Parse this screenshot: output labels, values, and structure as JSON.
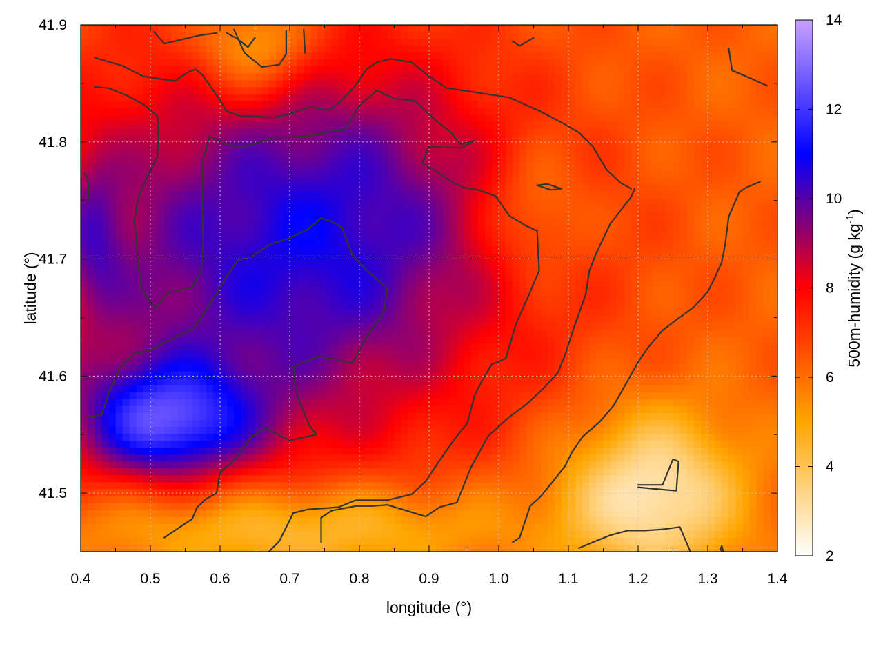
{
  "chart_data": {
    "type": "heatmap",
    "xlabel": "longitude (°)",
    "ylabel": "latitude (°)",
    "colorbar_label": "500m-humidity (g kg",
    "colorbar_label_sup": "-1",
    "colorbar_label_close": ")",
    "xlim": [
      0.4,
      1.4
    ],
    "ylim": [
      41.45,
      41.9
    ],
    "zlim": [
      2,
      14
    ],
    "x_ticks": [
      0.4,
      0.5,
      0.6,
      0.7,
      0.8,
      0.9,
      1.0,
      1.1,
      1.2,
      1.3,
      1.4
    ],
    "x_tick_labels": [
      "0.4",
      "0.5",
      "0.6",
      "0.7",
      "0.8",
      "0.9",
      "1.0",
      "1.1",
      "1.2",
      "1.3",
      "1.4"
    ],
    "y_ticks": [
      41.5,
      41.6,
      41.7,
      41.8,
      41.9
    ],
    "y_tick_labels": [
      "41.5",
      "41.6",
      "41.7",
      "41.8",
      "41.9"
    ],
    "colorbar_ticks": [
      2,
      4,
      6,
      8,
      10,
      12,
      14
    ],
    "colorbar_tick_labels": [
      "2",
      "4",
      "6",
      "8",
      "10",
      "12",
      "14"
    ],
    "grid": true,
    "colorscale": [
      "#ffffff",
      "#ffa500",
      "#ff0000",
      "#0000ff",
      "#c8a0ff"
    ],
    "field_blobs": [
      {
        "x": 0.67,
        "y": 41.7,
        "sx": 0.26,
        "sy": 0.13,
        "a": 4.0
      },
      {
        "x": 0.82,
        "y": 41.76,
        "sx": 0.14,
        "sy": 0.09,
        "a": 1.0
      },
      {
        "x": 0.52,
        "y": 41.56,
        "sx": 0.09,
        "sy": 0.035,
        "a": 4.5
      },
      {
        "x": 0.42,
        "y": 41.72,
        "sx": 0.03,
        "sy": 0.05,
        "a": 1.5
      },
      {
        "x": 1.22,
        "y": 41.5,
        "sx": 0.09,
        "sy": 0.05,
        "a": -3.5
      },
      {
        "x": 0.7,
        "y": 41.47,
        "sx": 0.22,
        "sy": 0.03,
        "a": -2.5
      },
      {
        "x": 1.05,
        "y": 41.74,
        "sx": 0.05,
        "sy": 0.04,
        "a": -1.5
      },
      {
        "x": 0.65,
        "y": 41.88,
        "sx": 0.06,
        "sy": 0.03,
        "a": -2.5
      }
    ],
    "contours": [
      [
        [
          0.42,
          41.872
        ],
        [
          0.46,
          41.865
        ],
        [
          0.49,
          41.856
        ],
        [
          0.535,
          41.852
        ],
        [
          0.555,
          41.86
        ],
        [
          0.565,
          41.862
        ],
        [
          0.575,
          41.857
        ],
        [
          0.595,
          41.84
        ],
        [
          0.61,
          41.826
        ],
        [
          0.63,
          41.822
        ],
        [
          0.68,
          41.821
        ],
        [
          0.7,
          41.824
        ],
        [
          0.73,
          41.83
        ],
        [
          0.755,
          41.827
        ],
        [
          0.77,
          41.833
        ],
        [
          0.79,
          41.845
        ],
        [
          0.8,
          41.853
        ],
        [
          0.81,
          41.862
        ],
        [
          0.825,
          41.868
        ],
        [
          0.845,
          41.871
        ],
        [
          0.875,
          41.868
        ],
        [
          0.9,
          41.856
        ],
        [
          0.925,
          41.846
        ],
        [
          0.96,
          41.843
        ],
        [
          1.015,
          41.838
        ],
        [
          1.06,
          41.826
        ],
        [
          1.095,
          41.815
        ],
        [
          1.115,
          41.808
        ],
        [
          1.135,
          41.796
        ],
        [
          1.155,
          41.776
        ],
        [
          1.175,
          41.765
        ],
        [
          1.19,
          41.76
        ]
      ],
      [
        [
          0.42,
          41.847
        ],
        [
          0.44,
          41.846
        ],
        [
          0.465,
          41.84
        ],
        [
          0.49,
          41.832
        ],
        [
          0.51,
          41.822
        ],
        [
          0.512,
          41.81
        ],
        [
          0.51,
          41.787
        ],
        [
          0.495,
          41.77
        ],
        [
          0.483,
          41.753
        ],
        [
          0.477,
          41.733
        ],
        [
          0.48,
          41.715
        ],
        [
          0.482,
          41.697
        ],
        [
          0.487,
          41.677
        ],
        [
          0.495,
          41.667
        ],
        [
          0.507,
          41.658
        ],
        [
          0.525,
          41.671
        ],
        [
          0.56,
          41.676
        ],
        [
          0.573,
          41.691
        ],
        [
          0.576,
          41.715
        ],
        [
          0.574,
          41.75
        ],
        [
          0.576,
          41.786
        ],
        [
          0.585,
          41.805
        ],
        [
          0.605,
          41.799
        ],
        [
          0.63,
          41.795
        ],
        [
          0.68,
          41.804
        ],
        [
          0.705,
          41.804
        ],
        [
          0.735,
          41.806
        ],
        [
          0.78,
          41.811
        ],
        [
          0.8,
          41.831
        ],
        [
          0.825,
          41.844
        ],
        [
          0.85,
          41.837
        ],
        [
          0.88,
          41.835
        ],
        [
          0.91,
          41.818
        ],
        [
          0.93,
          41.809
        ],
        [
          0.945,
          41.798
        ],
        [
          0.965,
          41.801
        ],
        [
          0.947,
          41.795
        ],
        [
          0.9,
          41.796
        ],
        [
          0.89,
          41.782
        ],
        [
          0.91,
          41.775
        ],
        [
          0.935,
          41.765
        ],
        [
          0.95,
          41.761
        ],
        [
          0.97,
          41.759
        ],
        [
          0.995,
          41.754
        ],
        [
          1.015,
          41.737
        ],
        [
          1.04,
          41.728
        ],
        [
          1.055,
          41.724
        ],
        [
          1.058,
          41.69
        ],
        [
          1.04,
          41.665
        ],
        [
          1.025,
          41.645
        ],
        [
          1.015,
          41.625
        ],
        [
          1.01,
          41.615
        ],
        [
          0.99,
          41.61
        ],
        [
          0.975,
          41.595
        ],
        [
          0.965,
          41.583
        ],
        [
          0.955,
          41.56
        ],
        [
          0.935,
          41.545
        ],
        [
          0.915,
          41.528
        ],
        [
          0.895,
          41.51
        ],
        [
          0.875,
          41.499
        ],
        [
          0.84,
          41.494
        ],
        [
          0.795,
          41.494
        ],
        [
          0.77,
          41.488
        ],
        [
          0.725,
          41.486
        ],
        [
          0.705,
          41.483
        ],
        [
          0.685,
          41.459
        ],
        [
          0.665,
          41.447
        ]
      ],
      [
        [
          0.41,
          41.565
        ],
        [
          0.43,
          41.567
        ],
        [
          0.44,
          41.585
        ],
        [
          0.455,
          41.606
        ],
        [
          0.475,
          41.619
        ],
        [
          0.5,
          41.622
        ],
        [
          0.52,
          41.629
        ],
        [
          0.56,
          41.64
        ],
        [
          0.575,
          41.652
        ],
        [
          0.6,
          41.676
        ],
        [
          0.625,
          41.699
        ],
        [
          0.645,
          41.702
        ],
        [
          0.67,
          41.712
        ],
        [
          0.7,
          41.718
        ],
        [
          0.725,
          41.725
        ],
        [
          0.745,
          41.735
        ],
        [
          0.76,
          41.732
        ],
        [
          0.775,
          41.727
        ],
        [
          0.79,
          41.703
        ],
        [
          0.815,
          41.688
        ],
        [
          0.84,
          41.675
        ],
        [
          0.835,
          41.655
        ],
        [
          0.81,
          41.633
        ],
        [
          0.79,
          41.611
        ],
        [
          0.76,
          41.615
        ],
        [
          0.74,
          41.617
        ],
        [
          0.72,
          41.612
        ],
        [
          0.705,
          41.608
        ],
        [
          0.708,
          41.591
        ],
        [
          0.715,
          41.577
        ],
        [
          0.728,
          41.558
        ],
        [
          0.738,
          41.55
        ],
        [
          0.715,
          41.547
        ],
        [
          0.7,
          41.545
        ],
        [
          0.68,
          41.551
        ],
        [
          0.665,
          41.556
        ],
        [
          0.645,
          41.548
        ],
        [
          0.63,
          41.535
        ],
        [
          0.615,
          41.525
        ],
        [
          0.6,
          41.518
        ],
        [
          0.595,
          41.5
        ],
        [
          0.58,
          41.495
        ],
        [
          0.567,
          41.488
        ],
        [
          0.56,
          41.478
        ],
        [
          0.54,
          41.47
        ],
        [
          0.52,
          41.462
        ]
      ],
      [
        [
          0.745,
          41.458
        ],
        [
          0.745,
          41.479
        ],
        [
          0.76,
          41.485
        ],
        [
          0.795,
          41.489
        ],
        [
          0.82,
          41.489
        ],
        [
          0.84,
          41.49
        ],
        [
          0.895,
          41.48
        ],
        [
          0.915,
          41.488
        ],
        [
          0.94,
          41.492
        ],
        [
          0.96,
          41.522
        ],
        [
          0.985,
          41.549
        ],
        [
          1.015,
          41.565
        ],
        [
          1.04,
          41.576
        ],
        [
          1.065,
          41.59
        ],
        [
          1.085,
          41.603
        ],
        [
          1.095,
          41.618
        ],
        [
          1.11,
          41.645
        ],
        [
          1.125,
          41.67
        ],
        [
          1.13,
          41.69
        ],
        [
          1.14,
          41.705
        ],
        [
          1.16,
          41.73
        ],
        [
          1.19,
          41.753
        ],
        [
          1.195,
          41.76
        ]
      ],
      [
        [
          1.02,
          41.458
        ],
        [
          1.03,
          41.462
        ],
        [
          1.045,
          41.489
        ],
        [
          1.06,
          41.497
        ],
        [
          1.075,
          41.508
        ],
        [
          1.095,
          41.523
        ],
        [
          1.105,
          41.535
        ],
        [
          1.12,
          41.548
        ],
        [
          1.145,
          41.561
        ],
        [
          1.165,
          41.575
        ],
        [
          1.185,
          41.596
        ],
        [
          1.2,
          41.612
        ],
        [
          1.215,
          41.625
        ],
        [
          1.235,
          41.639
        ],
        [
          1.255,
          41.648
        ],
        [
          1.28,
          41.659
        ],
        [
          1.3,
          41.672
        ],
        [
          1.31,
          41.684
        ],
        [
          1.32,
          41.697
        ],
        [
          1.325,
          41.713
        ],
        [
          1.33,
          41.736
        ],
        [
          1.345,
          41.757
        ],
        [
          1.355,
          41.761
        ],
        [
          1.375,
          41.766
        ]
      ],
      [
        [
          1.115,
          41.453
        ],
        [
          1.135,
          41.458
        ],
        [
          1.16,
          41.464
        ],
        [
          1.185,
          41.468
        ],
        [
          1.21,
          41.468
        ],
        [
          1.235,
          41.469
        ],
        [
          1.26,
          41.471
        ],
        [
          1.275,
          41.45
        ],
        [
          1.28,
          41.447
        ]
      ],
      [
        [
          1.2,
          41.505
        ],
        [
          1.235,
          41.503
        ],
        [
          1.255,
          41.502
        ],
        [
          1.258,
          41.527
        ],
        [
          1.25,
          41.529
        ],
        [
          1.235,
          41.507
        ],
        [
          1.2,
          41.507
        ]
      ],
      [
        [
          1.318,
          41.452
        ],
        [
          1.323,
          41.449
        ],
        [
          1.32,
          41.455
        ],
        [
          1.318,
          41.452
        ]
      ],
      [
        [
          0.505,
          41.894
        ],
        [
          0.52,
          41.884
        ],
        [
          0.57,
          41.891
        ],
        [
          0.595,
          41.893
        ]
      ],
      [
        [
          0.61,
          41.893
        ],
        [
          0.625,
          41.888
        ],
        [
          0.64,
          41.881
        ],
        [
          0.65,
          41.889
        ]
      ],
      [
        [
          0.62,
          41.896
        ],
        [
          0.635,
          41.876
        ],
        [
          0.66,
          41.864
        ],
        [
          0.685,
          41.866
        ],
        [
          0.695,
          41.875
        ],
        [
          0.695,
          41.895
        ]
      ],
      [
        [
          0.72,
          41.896
        ],
        [
          0.722,
          41.876
        ]
      ],
      [
        [
          1.02,
          41.886
        ],
        [
          1.03,
          41.882
        ],
        [
          1.05,
          41.889
        ]
      ],
      [
        [
          1.055,
          41.763
        ],
        [
          1.07,
          41.764
        ],
        [
          1.09,
          41.76
        ],
        [
          1.075,
          41.759
        ],
        [
          1.055,
          41.763
        ]
      ],
      [
        [
          1.33,
          41.88
        ],
        [
          1.335,
          41.861
        ],
        [
          1.355,
          41.856
        ],
        [
          1.385,
          41.848
        ]
      ],
      [
        [
          0.405,
          41.773
        ],
        [
          0.41,
          41.77
        ],
        [
          0.412,
          41.753
        ],
        [
          0.408,
          41.75
        ]
      ]
    ]
  }
}
